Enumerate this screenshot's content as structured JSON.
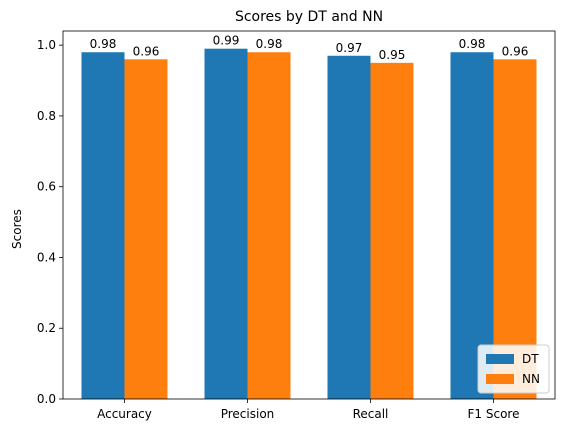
{
  "chart_data": {
    "type": "bar",
    "title": "Scores by DT and NN",
    "xlabel": "",
    "ylabel": "Scores",
    "categories": [
      "Accuracy",
      "Precision",
      "Recall",
      "F1 Score"
    ],
    "series": [
      {
        "name": "DT",
        "values": [
          0.98,
          0.99,
          0.97,
          0.98
        ],
        "color": "#1f77b4"
      },
      {
        "name": "NN",
        "values": [
          0.96,
          0.98,
          0.95,
          0.96
        ],
        "color": "#ff7f0e"
      }
    ],
    "ylim": [
      0,
      1.04
    ],
    "yticks": [
      "0.0",
      "0.2",
      "0.4",
      "0.6",
      "0.8",
      "1.0"
    ],
    "grid": false,
    "legend_position": "lower-right"
  }
}
